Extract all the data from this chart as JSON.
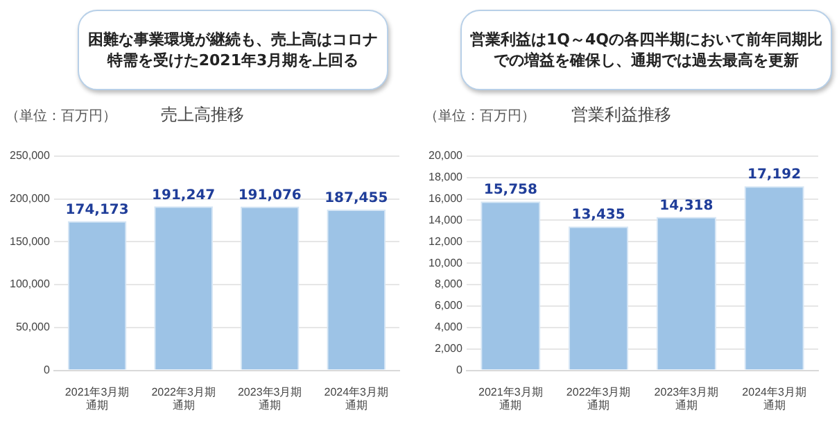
{
  "chart_data": [
    {
      "type": "bar",
      "title": "売上高推移",
      "ylabel": "（単位：百万円）",
      "annotations": [
        "困難な事業環境が継続も、売上高はコロナ特需を受けた2021年3月期を上回る"
      ],
      "categories": [
        "2021年3月期通期",
        "2022年3月期通期",
        "2023年3月期通期",
        "2024年3月期通期"
      ],
      "values": [
        174173,
        191247,
        191076,
        187455
      ],
      "value_labels": [
        "174,173",
        "191,247",
        "191,076",
        "187,455"
      ],
      "color": "#9dc3e6",
      "ylim": [
        0,
        250000
      ],
      "yticks": [
        {
          "value": 0,
          "label": "0"
        },
        {
          "value": 50000,
          "label": "50,000"
        },
        {
          "value": 100000,
          "label": "100,000"
        },
        {
          "value": 150000,
          "label": "150,000"
        },
        {
          "value": 200000,
          "label": "200,000"
        },
        {
          "value": 250000,
          "label": "250,000"
        }
      ],
      "grid": "y",
      "legend": false
    },
    {
      "type": "bar",
      "title": "営業利益推移",
      "ylabel": "（単位：百万円）",
      "annotations": [
        "営業利益は1Q～4Qの各四半期において前年同期比での増益を確保し、通期では過去最高を更新"
      ],
      "categories": [
        "2021年3月期通期",
        "2022年3月期通期",
        "2023年3月期通期",
        "2024年3月期通期"
      ],
      "values": [
        15758,
        13435,
        14318,
        17192
      ],
      "value_labels": [
        "15,758",
        "13,435",
        "14,318",
        "17,192"
      ],
      "color": "#9dc3e6",
      "ylim": [
        0,
        20000
      ],
      "yticks": [
        {
          "value": 0,
          "label": "0"
        },
        {
          "value": 2000,
          "label": "2,000"
        },
        {
          "value": 4000,
          "label": "4,000"
        },
        {
          "value": 6000,
          "label": "6,000"
        },
        {
          "value": 8000,
          "label": "8,000"
        },
        {
          "value": 10000,
          "label": "10,000"
        },
        {
          "value": 12000,
          "label": "12,000"
        },
        {
          "value": 14000,
          "label": "14,000"
        },
        {
          "value": 16000,
          "label": "16,000"
        },
        {
          "value": 18000,
          "label": "18,000"
        },
        {
          "value": 20000,
          "label": "20,000"
        }
      ],
      "grid": "y",
      "legend": false
    }
  ]
}
